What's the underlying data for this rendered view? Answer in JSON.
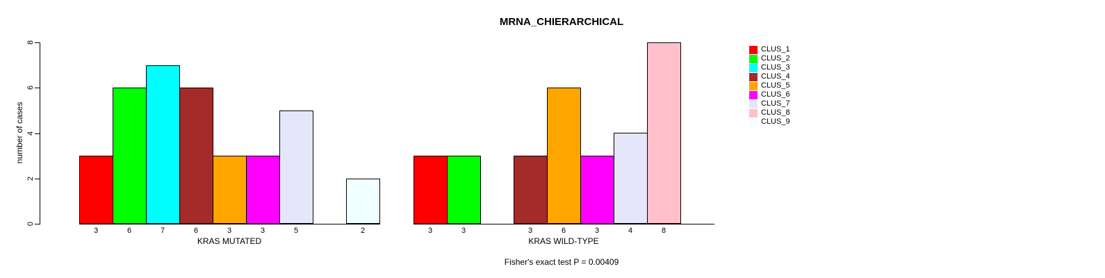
{
  "figure": {
    "title": "MRNA_CHIERARCHICAL",
    "annotation": "Fisher's exact test P = 0.00409"
  },
  "chart_data": {
    "type": "bar",
    "title": "MRNA_CHIERARCHICAL",
    "xlabel": "",
    "ylabel": "number of cases",
    "ylim": [
      0,
      8
    ],
    "yticks": [
      0,
      2,
      4,
      6,
      8
    ],
    "grid": false,
    "legend_position": "right-outside",
    "annotation": "Fisher's exact test P = 0.00409",
    "groups": [
      {
        "label": "KRAS MUTATED"
      },
      {
        "label": "KRAS WILD-TYPE"
      }
    ],
    "series": [
      {
        "name": "CLUS_1",
        "color": "#FF0000",
        "values": [
          3,
          3
        ]
      },
      {
        "name": "CLUS_2",
        "color": "#00FF00",
        "values": [
          6,
          3
        ]
      },
      {
        "name": "CLUS_3",
        "color": "#00FFFF",
        "values": [
          7,
          0
        ]
      },
      {
        "name": "CLUS_4",
        "color": "#A52A2A",
        "values": [
          6,
          3
        ]
      },
      {
        "name": "CLUS_5",
        "color": "#FFA500",
        "values": [
          3,
          6
        ]
      },
      {
        "name": "CLUS_6",
        "color": "#FF00FF",
        "values": [
          3,
          3
        ]
      },
      {
        "name": "CLUS_7",
        "color": "#E6E6FA",
        "values": [
          5,
          4
        ]
      },
      {
        "name": "CLUS_8",
        "color": "#FFC0CB",
        "values": [
          0,
          8
        ]
      },
      {
        "name": "CLUS_9",
        "color": "#F0FFFF",
        "values": [
          2,
          0
        ]
      }
    ],
    "bar_value_labels_shown": true,
    "notes": "zero-value series leave an empty slot in the group; value printed beneath each nonzero bar"
  }
}
